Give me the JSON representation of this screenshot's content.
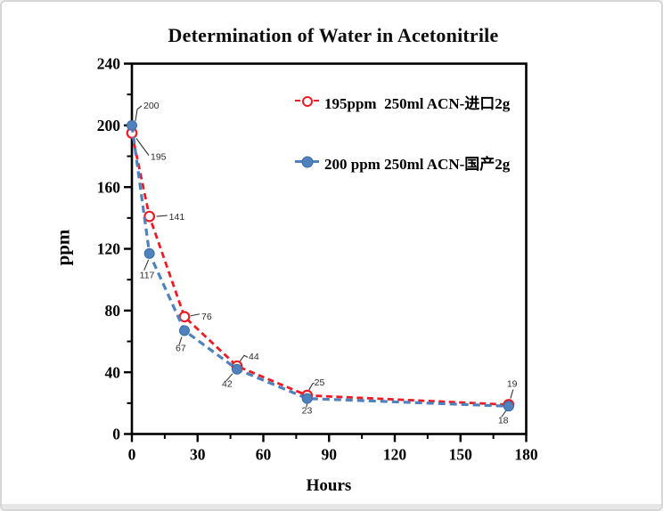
{
  "frame": {
    "background": "#ffffff",
    "border_color": "#d6d6d6"
  },
  "chart_data": {
    "type": "line",
    "title": "Determination of Water in Acetonitrile",
    "xlabel": "Hours",
    "ylabel": "ppm",
    "xlim": [
      0,
      180
    ],
    "ylim": [
      0,
      240
    ],
    "x_ticks": [
      0,
      30,
      60,
      90,
      120,
      150,
      180
    ],
    "y_ticks": [
      0,
      40,
      80,
      120,
      160,
      200,
      240
    ],
    "minor_ticks": true,
    "grid": false,
    "legend_position": "top-center-inside",
    "x": [
      0,
      8,
      24,
      48,
      80,
      172
    ],
    "series": [
      {
        "name": "195ppm  250ml ACN-进口2g",
        "color": "#ed1c24",
        "marker": "open-circle",
        "line_style": "dashed",
        "values": [
          195,
          141,
          76,
          44,
          25,
          19
        ],
        "point_labels": [
          "195",
          "141",
          "76",
          "44",
          "25",
          "19"
        ]
      },
      {
        "name": "200 ppm 250ml ACN-国产2g",
        "color": "#4f81bd",
        "marker": "filled-circle",
        "line_style": "dashed",
        "values": [
          200,
          117,
          67,
          42,
          23,
          18
        ],
        "point_labels": [
          "200",
          "117",
          "67",
          "42",
          "23",
          "18"
        ]
      }
    ]
  }
}
